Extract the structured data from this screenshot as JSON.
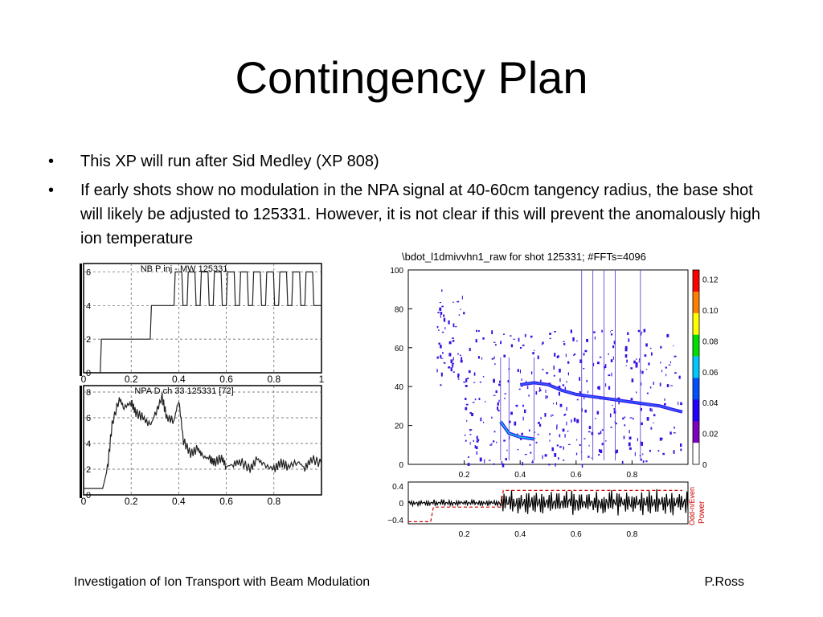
{
  "slide": {
    "title": "Contingency Plan",
    "bullets": [
      "This XP will run after Sid Medley (XP 808)",
      "If early shots show no modulation in the NPA signal at 40-60cm tangency radius, the base shot will likely be adjusted to 125331.  However, it is not clear if this will prevent the anomalously high ion temperature"
    ],
    "bullet_glyph": "•",
    "footer_left": "Investigation of Ion Transport with Beam Modulation",
    "footer_right": "P.Ross"
  },
  "chart_data": [
    {
      "type": "line",
      "title": "NB P inj - MW     125331",
      "xlim": [
        0,
        1.0
      ],
      "ylim": [
        0,
        6.5
      ],
      "x_ticks": [
        "0",
        "0.2",
        "0.4",
        "0.6",
        "0.8",
        "1"
      ],
      "y_ticks": [
        "0",
        "2",
        "4",
        "6"
      ],
      "series": [
        {
          "x": [
            0.07,
            0.075,
            0.28,
            0.285,
            0.38,
            0.385,
            0.5,
            0.505,
            0.55,
            0.555,
            0.6,
            0.605,
            0.55
          ],
          "y": [
            0,
            2,
            2,
            4,
            4,
            4,
            4,
            6,
            6,
            4,
            4,
            6,
            6
          ]
        }
      ],
      "pulses": {
        "start": 0.38,
        "end": 0.94,
        "period": 0.055,
        "low": 4,
        "high": 6
      },
      "grid": true
    },
    {
      "type": "line",
      "title": "NPA D ch 33     125331     [72]",
      "xlim": [
        0,
        1.0
      ],
      "ylim": [
        0,
        8.5
      ],
      "x_ticks": [
        "0",
        "0.2",
        "0.4",
        "0.6",
        "0.8"
      ],
      "y_ticks": [
        "0",
        "2",
        "4",
        "6",
        "8"
      ],
      "series": [
        {
          "x": [
            0.0,
            0.08,
            0.1,
            0.12,
            0.15,
            0.17,
            0.2,
            0.22,
            0.25,
            0.28,
            0.3,
            0.33,
            0.35,
            0.38,
            0.4,
            0.42,
            0.45,
            0.48,
            0.5,
            0.53,
            0.55,
            0.58,
            0.6,
            0.63,
            0.66,
            0.7,
            0.73,
            0.76,
            0.8,
            0.83,
            0.86,
            0.9,
            0.93,
            0.96,
            1.0
          ],
          "y": [
            0.5,
            0.5,
            2.0,
            5.5,
            7.5,
            6.8,
            7.2,
            6.4,
            6.0,
            5.4,
            6.2,
            7.6,
            6.0,
            5.8,
            7.4,
            4.2,
            3.2,
            3.6,
            3.0,
            2.8,
            2.5,
            2.9,
            2.2,
            2.4,
            2.6,
            2.0,
            2.8,
            2.3,
            2.0,
            2.5,
            2.2,
            2.6,
            2.1,
            2.8,
            2.4
          ]
        }
      ],
      "grid": true
    },
    {
      "type": "heatmap",
      "title": "\\bdot_l1dmivvhn1_raw for shot 125331; #FFTs=4096",
      "xlim": [
        0,
        1.0
      ],
      "ylim": [
        0,
        100
      ],
      "x_ticks": [
        "0.2",
        "0.4",
        "0.6",
        "0.8"
      ],
      "y_ticks": [
        "0",
        "20",
        "40",
        "60",
        "80",
        "100"
      ],
      "colorbar_ticks": [
        "0",
        "0.02",
        "0.04",
        "0.06",
        "0.08",
        "0.10",
        "0.12"
      ],
      "colors": [
        "#ffffff",
        "#2200ff",
        "#00c8ff",
        "#00e000",
        "#ffff00",
        "#ff0000"
      ],
      "bands": [
        {
          "x": [
            0.33,
            0.36,
            0.4,
            0.45
          ],
          "y": [
            22,
            16,
            14,
            13
          ]
        },
        {
          "x": [
            0.4,
            0.45,
            0.5,
            0.55,
            0.6,
            0.65,
            0.7,
            0.75,
            0.8,
            0.85,
            0.9,
            0.95,
            0.98
          ],
          "y": [
            41,
            42,
            41,
            38,
            36,
            35,
            34,
            33,
            32,
            31,
            30,
            28,
            27
          ]
        }
      ]
    },
    {
      "type": "line",
      "xlim": [
        0,
        1.0
      ],
      "ylim": [
        -0.5,
        0.5
      ],
      "x_ticks": [
        "0.2",
        "0.4",
        "0.6",
        "0.8"
      ],
      "y_ticks": [
        "−0.4",
        "0",
        "0.4"
      ],
      "right_label": "Power",
      "right_label_secondary": "Odd-n/Even"
    }
  ]
}
